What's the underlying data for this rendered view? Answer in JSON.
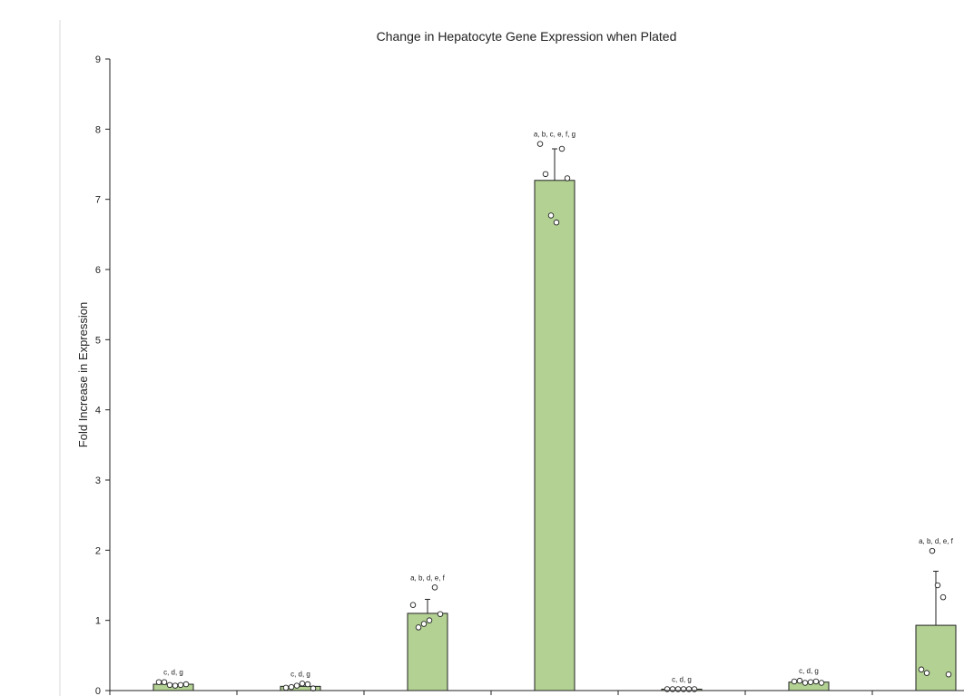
{
  "chart_data": {
    "type": "bar",
    "title": "Change in Hepatocyte Gene Expression when Plated",
    "xlabel": "",
    "ylabel": "Fold Increase in Expression",
    "ylim": [
      0,
      9
    ],
    "yticks": [
      "0",
      "1",
      "2",
      "3",
      "4",
      "5",
      "6",
      "7",
      "8",
      "9"
    ],
    "grid": false,
    "colors": {
      "bar_fill": "#b2d193",
      "bar_stroke": "#222222"
    },
    "bars": [
      {
        "value": 0.09,
        "error": 0.0,
        "sig": "c, d, g",
        "points": [
          0.12,
          0.12,
          0.08,
          0.07,
          0.08,
          0.09
        ]
      },
      {
        "value": 0.06,
        "error": 0.0,
        "sig": "c, d, g",
        "points": [
          0.04,
          0.05,
          0.07,
          0.1,
          0.09,
          0.03
        ]
      },
      {
        "value": 1.1,
        "error": 0.2,
        "sig": "a, b, d, e, f",
        "points": [
          1.22,
          0.9,
          0.95,
          1.0,
          1.47,
          1.09
        ]
      },
      {
        "value": 7.27,
        "error": 0.45,
        "sig": "a, b, c, e, f, g",
        "points": [
          7.79,
          7.36,
          6.77,
          6.67,
          7.72,
          7.3
        ]
      },
      {
        "value": 0.02,
        "error": 0.0,
        "sig": "c, d, g",
        "points": [
          0.02,
          0.02,
          0.02,
          0.02,
          0.02,
          0.02
        ]
      },
      {
        "value": 0.12,
        "error": 0.0,
        "sig": "c, d, g",
        "points": [
          0.13,
          0.14,
          0.11,
          0.12,
          0.13,
          0.11
        ]
      },
      {
        "value": 0.93,
        "error": 0.77,
        "sig": "a, b, d, e, f",
        "points": [
          0.3,
          0.25,
          1.99,
          1.5,
          1.33,
          0.23
        ]
      }
    ]
  }
}
